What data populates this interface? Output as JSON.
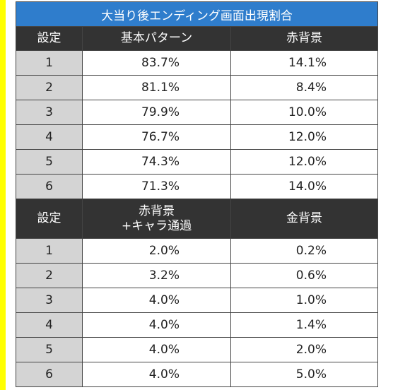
{
  "title": "大当り後エンディング画面出現割合",
  "sections": [
    {
      "header": [
        "設定",
        "基本パターン",
        "赤背景"
      ],
      "rows": [
        [
          "1",
          "83.7%",
          "14.1%"
        ],
        [
          "2",
          "81.1%",
          "8.4%"
        ],
        [
          "3",
          "79.9%",
          "10.0%"
        ],
        [
          "4",
          "76.7%",
          "12.0%"
        ],
        [
          "5",
          "74.3%",
          "12.0%"
        ],
        [
          "6",
          "71.3%",
          "14.0%"
        ]
      ]
    },
    {
      "header": [
        "設定",
        "赤背景\n+キャラ通過",
        "金背景"
      ],
      "rows": [
        [
          "1",
          "2.0%",
          "0.2%"
        ],
        [
          "2",
          "3.2%",
          "0.6%"
        ],
        [
          "3",
          "4.0%",
          "1.0%"
        ],
        [
          "4",
          "4.0%",
          "1.4%"
        ],
        [
          "5",
          "4.0%",
          "2.0%"
        ],
        [
          "6",
          "4.0%",
          "5.0%"
        ]
      ]
    }
  ]
}
